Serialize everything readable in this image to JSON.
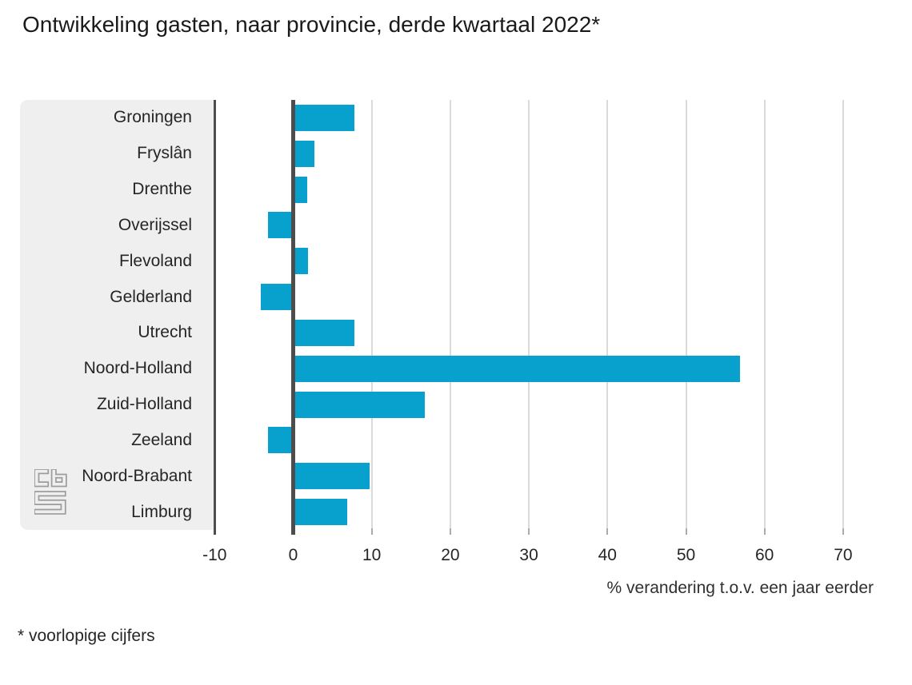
{
  "footnote": "* voorlopige cijfers",
  "colors": {
    "bar": "#08a1ce",
    "label_panel_background": "#efefef",
    "gridline": "#dadada",
    "axis_dark": "#4d4d4d",
    "tick": "#ababab",
    "text": "#262626"
  },
  "icons": {
    "logo": "cbs-logo"
  },
  "chart_data": {
    "type": "bar",
    "orientation": "horizontal",
    "title": "Ontwikkeling gasten, naar provincie, derde kwartaal 2022*",
    "xlabel": "% verandering t.o.v. een jaar eerder",
    "ylabel": "",
    "categories": [
      "Groningen",
      "Fryslân",
      "Drenthe",
      "Overijssel",
      "Flevoland",
      "Gelderland",
      "Utrecht",
      "Noord-Holland",
      "Zuid-Holland",
      "Zeeland",
      "Noord-Brabant",
      "Limburg"
    ],
    "values": [
      7.8,
      2.7,
      1.8,
      -3.2,
      1.9,
      -4.1,
      7.8,
      56.9,
      16.8,
      -3.2,
      9.7,
      6.9
    ],
    "xlim": [
      -10,
      75
    ],
    "xticks": [
      -10,
      0,
      10,
      20,
      30,
      40,
      50,
      60,
      70
    ],
    "grid": true,
    "legend": false
  }
}
